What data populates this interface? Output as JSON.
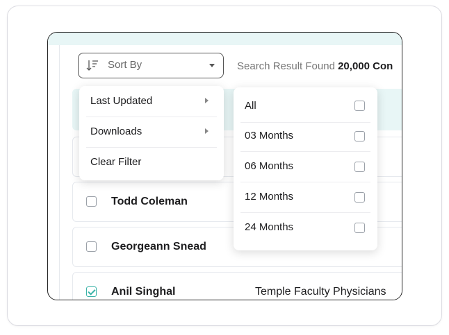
{
  "sort_by": {
    "label": "Sort By"
  },
  "search": {
    "prefix": "Search Result Found",
    "count": "20,000 Con"
  },
  "sort_menu": {
    "items": [
      {
        "label": "Last Updated",
        "has_submenu": true
      },
      {
        "label": "Downloads",
        "has_submenu": true
      },
      {
        "label": "Clear Filter",
        "has_submenu": false
      }
    ]
  },
  "period_menu": {
    "options": [
      {
        "label": "All",
        "checked": false
      },
      {
        "label": "03 Months",
        "checked": false
      },
      {
        "label": "06 Months",
        "checked": false
      },
      {
        "label": "12 Months",
        "checked": false
      },
      {
        "label": "24 Months",
        "checked": false
      }
    ]
  },
  "table": {
    "rows": [
      {
        "name": "Todd Coleman",
        "company": null,
        "checked": false
      },
      {
        "name": "Georgeann Snead",
        "company": null,
        "checked": false
      },
      {
        "name": "Anil Singhal",
        "company": "Temple Faculty Physicians",
        "checked": true
      }
    ]
  }
}
